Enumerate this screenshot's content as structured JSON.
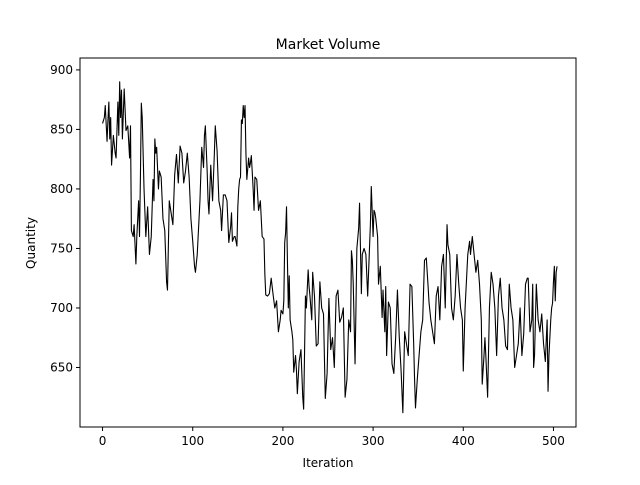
{
  "chart_data": {
    "type": "line",
    "title": "Market Volume",
    "xlabel": "Iteration",
    "ylabel": "Quantity",
    "xlim": [
      -25,
      525
    ],
    "ylim": [
      600,
      910
    ],
    "xticks": [
      0,
      100,
      200,
      300,
      400,
      500
    ],
    "yticks": [
      650,
      700,
      750,
      800,
      850,
      900
    ],
    "grid": false,
    "legend": "none",
    "series": [
      {
        "color": "#000000",
        "points": [
          [
            0,
            855
          ],
          [
            2,
            860
          ],
          [
            3,
            870
          ],
          [
            5,
            840
          ],
          [
            6,
            858
          ],
          [
            7,
            873
          ],
          [
            8,
            842
          ],
          [
            9,
            860
          ],
          [
            10,
            820
          ],
          [
            12,
            845
          ],
          [
            14,
            830
          ],
          [
            15,
            826
          ],
          [
            17,
            873
          ],
          [
            18,
            845
          ],
          [
            19,
            890
          ],
          [
            20,
            860
          ],
          [
            21,
            883
          ],
          [
            22,
            842
          ],
          [
            24,
            884
          ],
          [
            26,
            849
          ],
          [
            28,
            853
          ],
          [
            30,
            826
          ],
          [
            31,
            853
          ],
          [
            32,
            765
          ],
          [
            34,
            760
          ],
          [
            35,
            770
          ],
          [
            37,
            737
          ],
          [
            38,
            760
          ],
          [
            40,
            790
          ],
          [
            41,
            760
          ],
          [
            42,
            810
          ],
          [
            43,
            872
          ],
          [
            44,
            860
          ],
          [
            46,
            800
          ],
          [
            48,
            760
          ],
          [
            50,
            785
          ],
          [
            52,
            745
          ],
          [
            54,
            760
          ],
          [
            56,
            808
          ],
          [
            57,
            790
          ],
          [
            58,
            842
          ],
          [
            59,
            830
          ],
          [
            60,
            835
          ],
          [
            62,
            800
          ],
          [
            63,
            815
          ],
          [
            65,
            810
          ],
          [
            67,
            775
          ],
          [
            69,
            765
          ],
          [
            71,
            722
          ],
          [
            72,
            715
          ],
          [
            74,
            790
          ],
          [
            76,
            780
          ],
          [
            78,
            770
          ],
          [
            80,
            812
          ],
          [
            82,
            829
          ],
          [
            84,
            805
          ],
          [
            86,
            836
          ],
          [
            88,
            830
          ],
          [
            90,
            805
          ],
          [
            92,
            815
          ],
          [
            94,
            830
          ],
          [
            96,
            810
          ],
          [
            98,
            775
          ],
          [
            100,
            756
          ],
          [
            102,
            735
          ],
          [
            103,
            730
          ],
          [
            105,
            745
          ],
          [
            107,
            775
          ],
          [
            108,
            790
          ],
          [
            110,
            835
          ],
          [
            112,
            818
          ],
          [
            113,
            845
          ],
          [
            114,
            853
          ],
          [
            116,
            815
          ],
          [
            117,
            790
          ],
          [
            118,
            779
          ],
          [
            120,
            820
          ],
          [
            122,
            790
          ],
          [
            124,
            830
          ],
          [
            125,
            853
          ],
          [
            127,
            832
          ],
          [
            129,
            790
          ],
          [
            131,
            782
          ],
          [
            132,
            765
          ],
          [
            134,
            795
          ],
          [
            136,
            795
          ],
          [
            138,
            790
          ],
          [
            140,
            755
          ],
          [
            142,
            768
          ],
          [
            143,
            780
          ],
          [
            144,
            756
          ],
          [
            146,
            760
          ],
          [
            147,
            760
          ],
          [
            149,
            752
          ],
          [
            150,
            785
          ],
          [
            151,
            800
          ],
          [
            152,
            808
          ],
          [
            153,
            810
          ],
          [
            154,
            858
          ],
          [
            155,
            855
          ],
          [
            156,
            870
          ],
          [
            157,
            860
          ],
          [
            158,
            870
          ],
          [
            159,
            830
          ],
          [
            160,
            808
          ],
          [
            162,
            826
          ],
          [
            163,
            818
          ],
          [
            164,
            822
          ],
          [
            165,
            828
          ],
          [
            167,
            800
          ],
          [
            168,
            782
          ],
          [
            169,
            810
          ],
          [
            171,
            808
          ],
          [
            173,
            782
          ],
          [
            175,
            790
          ],
          [
            177,
            760
          ],
          [
            179,
            758
          ],
          [
            180,
            728
          ],
          [
            181,
            711
          ],
          [
            183,
            710
          ],
          [
            185,
            712
          ],
          [
            187,
            725
          ],
          [
            189,
            712
          ],
          [
            191,
            700
          ],
          [
            193,
            706
          ],
          [
            195,
            680
          ],
          [
            197,
            690
          ],
          [
            198,
            698
          ],
          [
            200,
            695
          ],
          [
            201,
            706
          ],
          [
            202,
            755
          ],
          [
            203,
            763
          ],
          [
            204,
            785
          ],
          [
            205,
            740
          ],
          [
            206,
            700
          ],
          [
            207,
            727
          ],
          [
            208,
            690
          ],
          [
            210,
            680
          ],
          [
            211,
            673
          ],
          [
            212,
            646
          ],
          [
            214,
            660
          ],
          [
            215,
            648
          ],
          [
            216,
            628
          ],
          [
            218,
            655
          ],
          [
            220,
            665
          ],
          [
            222,
            625
          ],
          [
            223,
            615
          ],
          [
            225,
            710
          ],
          [
            226,
            700
          ],
          [
            228,
            732
          ],
          [
            229,
            718
          ],
          [
            230,
            710
          ],
          [
            232,
            690
          ],
          [
            233,
            730
          ],
          [
            235,
            710
          ],
          [
            237,
            668
          ],
          [
            239,
            670
          ],
          [
            241,
            722
          ],
          [
            243,
            700
          ],
          [
            245,
            695
          ],
          [
            247,
            624
          ],
          [
            249,
            645
          ],
          [
            251,
            708
          ],
          [
            253,
            665
          ],
          [
            255,
            675
          ],
          [
            257,
            650
          ],
          [
            259,
            710
          ],
          [
            261,
            715
          ],
          [
            263,
            688
          ],
          [
            265,
            692
          ],
          [
            267,
            700
          ],
          [
            269,
            625
          ],
          [
            271,
            640
          ],
          [
            273,
            690
          ],
          [
            275,
            680
          ],
          [
            276,
            748
          ],
          [
            277,
            740
          ],
          [
            278,
            720
          ],
          [
            280,
            653
          ],
          [
            281,
            700
          ],
          [
            282,
            750
          ],
          [
            284,
            767
          ],
          [
            285,
            788
          ],
          [
            287,
            712
          ],
          [
            288,
            745
          ],
          [
            290,
            750
          ],
          [
            292,
            745
          ],
          [
            294,
            710
          ],
          [
            296,
            750
          ],
          [
            297,
            770
          ],
          [
            298,
            802
          ],
          [
            300,
            760
          ],
          [
            301,
            782
          ],
          [
            302,
            780
          ],
          [
            303,
            775
          ],
          [
            305,
            760
          ],
          [
            306,
            720
          ],
          [
            308,
            735
          ],
          [
            310,
            692
          ],
          [
            311,
            715
          ],
          [
            313,
            680
          ],
          [
            314,
            718
          ],
          [
            315,
            660
          ],
          [
            317,
            705
          ],
          [
            319,
            700
          ],
          [
            321,
            653
          ],
          [
            323,
            645
          ],
          [
            325,
            675
          ],
          [
            327,
            715
          ],
          [
            329,
            676
          ],
          [
            331,
            648
          ],
          [
            333,
            612
          ],
          [
            335,
            680
          ],
          [
            337,
            670
          ],
          [
            339,
            660
          ],
          [
            341,
            720
          ],
          [
            343,
            718
          ],
          [
            345,
            670
          ],
          [
            346,
            640
          ],
          [
            347,
            616
          ],
          [
            349,
            640
          ],
          [
            351,
            660
          ],
          [
            353,
            680
          ],
          [
            355,
            690
          ],
          [
            357,
            740
          ],
          [
            359,
            742
          ],
          [
            361,
            718
          ],
          [
            362,
            705
          ],
          [
            364,
            690
          ],
          [
            366,
            680
          ],
          [
            368,
            670
          ],
          [
            370,
            710
          ],
          [
            372,
            718
          ],
          [
            374,
            690
          ],
          [
            376,
            735
          ],
          [
            378,
            745
          ],
          [
            380,
            700
          ],
          [
            382,
            770
          ],
          [
            383,
            753
          ],
          [
            385,
            745
          ],
          [
            387,
            700
          ],
          [
            389,
            690
          ],
          [
            391,
            710
          ],
          [
            393,
            745
          ],
          [
            395,
            720
          ],
          [
            397,
            700
          ],
          [
            399,
            690
          ],
          [
            400,
            647
          ],
          [
            402,
            700
          ],
          [
            404,
            730
          ],
          [
            405,
            745
          ],
          [
            407,
            756
          ],
          [
            408,
            745
          ],
          [
            410,
            760
          ],
          [
            412,
            745
          ],
          [
            414,
            730
          ],
          [
            416,
            740
          ],
          [
            418,
            720
          ],
          [
            420,
            690
          ],
          [
            421,
            636
          ],
          [
            423,
            660
          ],
          [
            424,
            675
          ],
          [
            425,
            660
          ],
          [
            427,
            625
          ],
          [
            429,
            700
          ],
          [
            431,
            730
          ],
          [
            433,
            720
          ],
          [
            435,
            700
          ],
          [
            437,
            660
          ],
          [
            439,
            710
          ],
          [
            441,
            725
          ],
          [
            443,
            700
          ],
          [
            445,
            690
          ],
          [
            447,
            668
          ],
          [
            449,
            665
          ],
          [
            451,
            720
          ],
          [
            453,
            700
          ],
          [
            455,
            690
          ],
          [
            457,
            650
          ],
          [
            459,
            660
          ],
          [
            461,
            670
          ],
          [
            463,
            700
          ],
          [
            465,
            660
          ],
          [
            467,
            678
          ],
          [
            469,
            720
          ],
          [
            471,
            725
          ],
          [
            472,
            725
          ],
          [
            474,
            680
          ],
          [
            476,
            690
          ],
          [
            477,
            720
          ],
          [
            478,
            650
          ],
          [
            479,
            660
          ],
          [
            481,
            720
          ],
          [
            483,
            690
          ],
          [
            485,
            680
          ],
          [
            487,
            695
          ],
          [
            489,
            670
          ],
          [
            491,
            655
          ],
          [
            493,
            690
          ],
          [
            494,
            630
          ],
          [
            495,
            660
          ],
          [
            497,
            690
          ],
          [
            498,
            700
          ],
          [
            499,
            704
          ],
          [
            500,
            722
          ],
          [
            501,
            735
          ],
          [
            502,
            706
          ],
          [
            503,
            730
          ],
          [
            504,
            735
          ]
        ]
      }
    ]
  }
}
